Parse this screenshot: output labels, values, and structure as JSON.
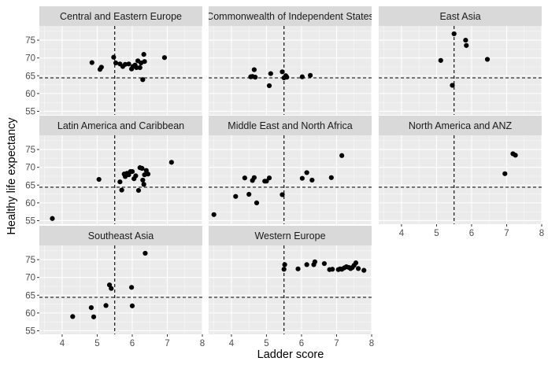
{
  "chart_data": {
    "type": "scatter",
    "title": "",
    "xlabel": "Ladder score",
    "ylabel": "Healthy life expectancy",
    "xlim": [
      3.35,
      8.0
    ],
    "ylim": [
      54.0,
      79.0
    ],
    "x_ticks": [
      4,
      5,
      6,
      7,
      8
    ],
    "y_ticks": [
      55,
      60,
      65,
      70,
      75
    ],
    "x_tick_labels": [
      "4",
      "5",
      "6",
      "7",
      "8"
    ],
    "y_tick_labels": [
      "55",
      "60",
      "65",
      "70",
      "75"
    ],
    "reference_lines": {
      "vertical_x": 5.5,
      "horizontal_y": 64.4
    },
    "grid": true,
    "layout": "facet_wrap 3 columns",
    "colors": {
      "panel_bg": "#ebebeb",
      "strip_bg": "#d9d9d9",
      "gridline": "#ffffff",
      "point": "#000000",
      "refline": "#000000"
    },
    "facets": [
      {
        "name": "Central and Eastern Europe",
        "points": [
          [
            4.85,
            68.7
          ],
          [
            5.08,
            66.8
          ],
          [
            5.12,
            67.4
          ],
          [
            5.47,
            70.2
          ],
          [
            5.53,
            68.6
          ],
          [
            5.65,
            68.3
          ],
          [
            5.73,
            67.6
          ],
          [
            5.8,
            68.2
          ],
          [
            5.9,
            68.3
          ],
          [
            5.98,
            66.9
          ],
          [
            6.02,
            67.6
          ],
          [
            6.08,
            68.0
          ],
          [
            6.12,
            67.3
          ],
          [
            6.16,
            69.2
          ],
          [
            6.22,
            67.3
          ],
          [
            6.25,
            68.6
          ],
          [
            6.3,
            63.9
          ],
          [
            6.33,
            71.0
          ],
          [
            6.35,
            69.0
          ],
          [
            6.92,
            70.1
          ]
        ]
      },
      {
        "name": "Commonwealth of Independent States",
        "points": [
          [
            4.55,
            64.7
          ],
          [
            4.6,
            64.8
          ],
          [
            4.65,
            66.7
          ],
          [
            4.68,
            64.6
          ],
          [
            5.08,
            62.2
          ],
          [
            5.12,
            65.6
          ],
          [
            5.45,
            66.1
          ],
          [
            5.5,
            64.4
          ],
          [
            5.55,
            65.0
          ],
          [
            5.58,
            64.6
          ],
          [
            6.02,
            64.7
          ],
          [
            6.25,
            65.1
          ]
        ]
      },
      {
        "name": "East Asia",
        "points": [
          [
            5.12,
            69.3
          ],
          [
            5.45,
            62.3
          ],
          [
            5.5,
            76.8
          ],
          [
            5.83,
            75.0
          ],
          [
            5.85,
            73.5
          ],
          [
            6.45,
            69.6
          ]
        ]
      },
      {
        "name": "Latin America and Caribbean",
        "points": [
          [
            3.72,
            55.6
          ],
          [
            5.05,
            66.6
          ],
          [
            5.65,
            65.9
          ],
          [
            5.7,
            63.6
          ],
          [
            5.77,
            68.1
          ],
          [
            5.8,
            67.4
          ],
          [
            5.85,
            68.3
          ],
          [
            5.9,
            67.9
          ],
          [
            5.95,
            68.8
          ],
          [
            6.0,
            68.8
          ],
          [
            6.05,
            66.8
          ],
          [
            6.1,
            67.6
          ],
          [
            6.18,
            63.5
          ],
          [
            6.22,
            69.9
          ],
          [
            6.28,
            69.7
          ],
          [
            6.3,
            66.4
          ],
          [
            6.33,
            65.2
          ],
          [
            6.35,
            67.9
          ],
          [
            6.4,
            69.1
          ],
          [
            6.45,
            68.1
          ],
          [
            7.12,
            71.4
          ]
        ]
      },
      {
        "name": "Middle East and North Africa",
        "points": [
          [
            3.5,
            56.7
          ],
          [
            4.12,
            61.8
          ],
          [
            4.38,
            67.0
          ],
          [
            4.5,
            62.4
          ],
          [
            4.6,
            66.3
          ],
          [
            4.65,
            67.1
          ],
          [
            4.72,
            60.0
          ],
          [
            4.95,
            66.1
          ],
          [
            5.0,
            66.1
          ],
          [
            5.08,
            67.0
          ],
          [
            5.45,
            62.3
          ],
          [
            6.02,
            66.9
          ],
          [
            6.15,
            68.5
          ],
          [
            6.3,
            66.4
          ],
          [
            6.85,
            67.1
          ],
          [
            7.15,
            73.3
          ]
        ]
      },
      {
        "name": "North America and ANZ",
        "points": [
          [
            6.95,
            68.2
          ],
          [
            7.18,
            73.8
          ],
          [
            7.25,
            73.4
          ]
        ]
      },
      {
        "name": "Southeast Asia",
        "points": [
          [
            4.3,
            59.0
          ],
          [
            4.83,
            61.5
          ],
          [
            4.9,
            58.9
          ],
          [
            5.25,
            62.1
          ],
          [
            5.35,
            67.9
          ],
          [
            5.4,
            66.9
          ],
          [
            5.98,
            67.2
          ],
          [
            6.0,
            62.0
          ],
          [
            6.37,
            76.8
          ]
        ]
      },
      {
        "name": "Western Europe",
        "points": [
          [
            5.5,
            72.3
          ],
          [
            5.52,
            73.6
          ],
          [
            5.9,
            72.4
          ],
          [
            6.15,
            73.6
          ],
          [
            6.35,
            73.6
          ],
          [
            6.38,
            74.4
          ],
          [
            6.65,
            73.9
          ],
          [
            6.8,
            72.2
          ],
          [
            6.88,
            72.3
          ],
          [
            7.05,
            72.2
          ],
          [
            7.1,
            72.4
          ],
          [
            7.15,
            72.3
          ],
          [
            7.22,
            72.7
          ],
          [
            7.28,
            73.0
          ],
          [
            7.35,
            72.8
          ],
          [
            7.4,
            72.5
          ],
          [
            7.45,
            72.8
          ],
          [
            7.5,
            73.4
          ],
          [
            7.55,
            74.1
          ],
          [
            7.62,
            72.5
          ],
          [
            7.78,
            72.0
          ]
        ]
      }
    ]
  }
}
